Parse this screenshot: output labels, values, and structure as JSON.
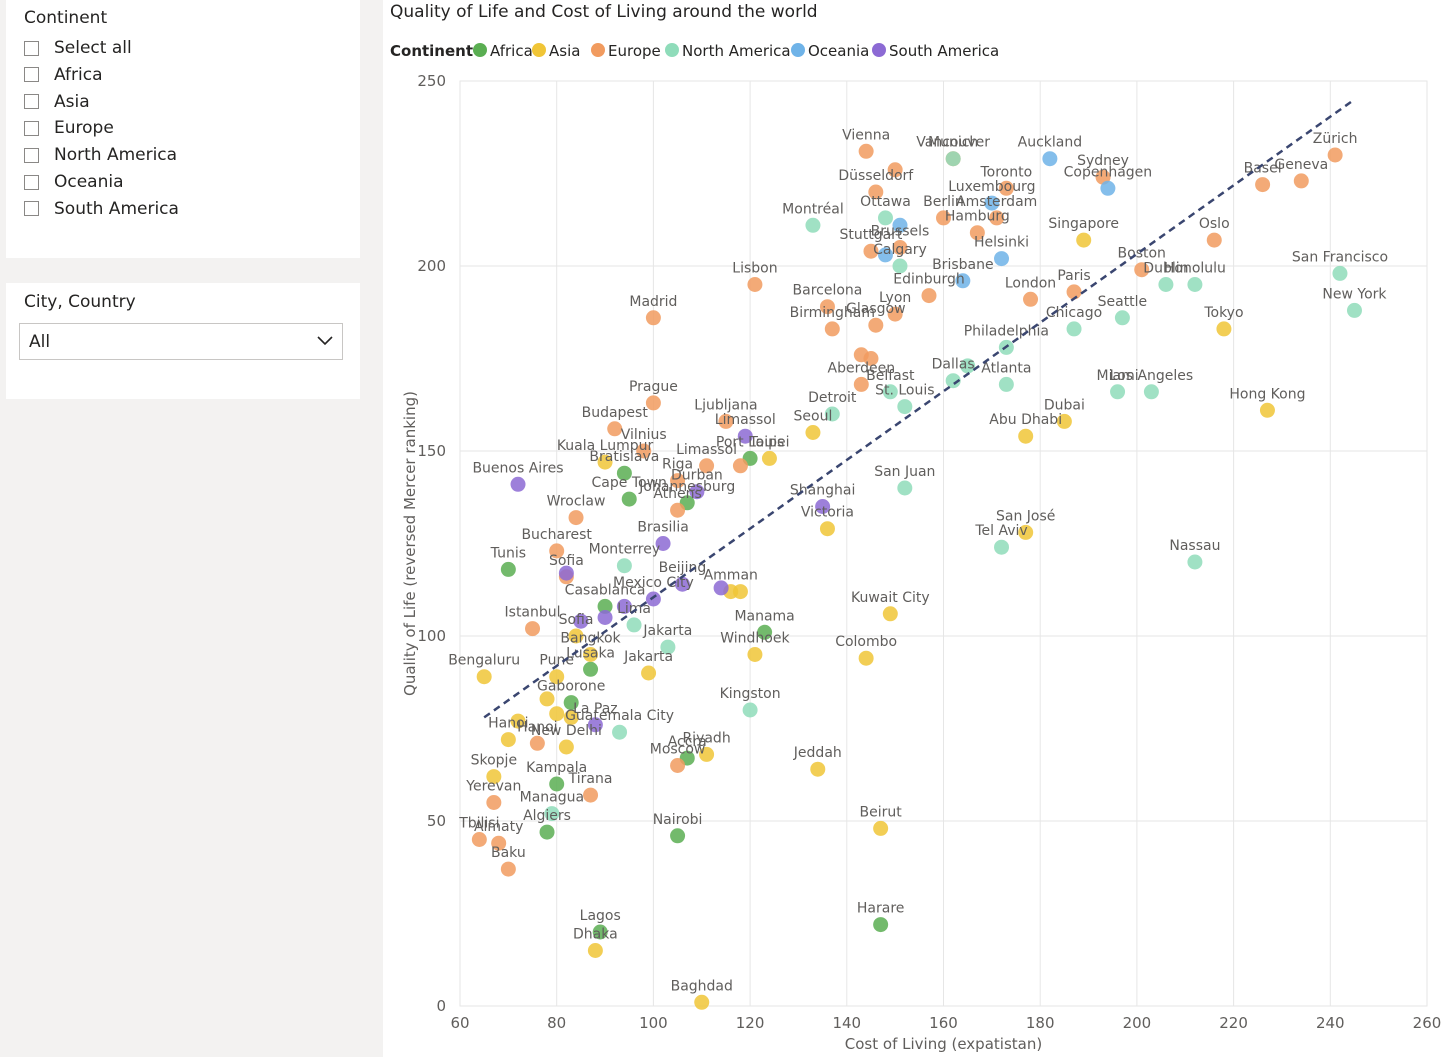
{
  "filters": {
    "continent": {
      "title": "Continent",
      "items": [
        {
          "label": "Select all",
          "checked": false
        },
        {
          "label": "Africa",
          "checked": false
        },
        {
          "label": "Asia",
          "checked": false
        },
        {
          "label": "Europe",
          "checked": false
        },
        {
          "label": "North America",
          "checked": false
        },
        {
          "label": "Oceania",
          "checked": false
        },
        {
          "label": "South America",
          "checked": false
        }
      ]
    },
    "city": {
      "title": "City, Country",
      "value": "All"
    }
  },
  "chart_data": {
    "type": "scatter",
    "title": "Quality of Life and Cost of Living around the world",
    "xlabel": "Cost of Living (expatistan)",
    "ylabel": "Quality of Life (reversed Mercer ranking)",
    "xlim": [
      60,
      260
    ],
    "ylim": [
      0,
      250
    ],
    "xticks": [
      60,
      80,
      100,
      120,
      140,
      160,
      180,
      200,
      220,
      240,
      260
    ],
    "yticks": [
      0,
      50,
      100,
      150,
      200,
      250
    ],
    "grid": true,
    "legend": {
      "title": "Continent",
      "position": "top-left"
    },
    "trendline": {
      "x": [
        65,
        245
      ],
      "y": [
        78,
        245
      ],
      "style": "dashed"
    },
    "series": [
      {
        "name": "Africa",
        "color": "#5aae52",
        "points": [
          {
            "x": 70,
            "y": 118,
            "label": "Tunis"
          },
          {
            "x": 90,
            "y": 108,
            "label": "Casablanca"
          },
          {
            "x": 123,
            "y": 101,
            "label": "Manama"
          },
          {
            "x": 94,
            "y": 144,
            "label": "Bratislava"
          },
          {
            "x": 95,
            "y": 137,
            "label": "Cape Town"
          },
          {
            "x": 107,
            "y": 136,
            "label": "Johannesburg"
          },
          {
            "x": 120,
            "y": 148,
            "label": "Port Louis"
          },
          {
            "x": 87,
            "y": 91,
            "label": "Lusaka"
          },
          {
            "x": 83,
            "y": 82,
            "label": "Gaborone"
          },
          {
            "x": 80,
            "y": 60,
            "label": "Kampala"
          },
          {
            "x": 78,
            "y": 47,
            "label": "Algiers"
          },
          {
            "x": 105,
            "y": 46,
            "label": "Nairobi"
          },
          {
            "x": 107,
            "y": 67,
            "label": "Accra"
          },
          {
            "x": 89,
            "y": 20,
            "label": "Lagos"
          },
          {
            "x": 147,
            "y": 22,
            "label": "Harare"
          }
        ]
      },
      {
        "name": "Asia",
        "color": "#f0c537",
        "points": [
          {
            "x": 65,
            "y": 89,
            "label": "Bengaluru"
          },
          {
            "x": 80,
            "y": 89,
            "label": "Pune"
          },
          {
            "x": 78,
            "y": 83,
            "label": ""
          },
          {
            "x": 72,
            "y": 77,
            "label": ""
          },
          {
            "x": 70,
            "y": 72,
            "label": "Hanoi"
          },
          {
            "x": 82,
            "y": 70,
            "label": "New Delhi"
          },
          {
            "x": 80,
            "y": 79,
            "label": ""
          },
          {
            "x": 83,
            "y": 78,
            "label": ""
          },
          {
            "x": 67,
            "y": 62,
            "label": "Skopje"
          },
          {
            "x": 84,
            "y": 100,
            "label": "Sofia"
          },
          {
            "x": 87,
            "y": 95,
            "label": "Bangkok"
          },
          {
            "x": 99,
            "y": 90,
            "label": "Jakarta"
          },
          {
            "x": 90,
            "y": 147,
            "label": "Kuala Lumpur"
          },
          {
            "x": 116,
            "y": 112,
            "label": "Amman"
          },
          {
            "x": 118,
            "y": 112,
            "label": ""
          },
          {
            "x": 121,
            "y": 95,
            "label": "Windhoek"
          },
          {
            "x": 111,
            "y": 68,
            "label": "Riyadh"
          },
          {
            "x": 134,
            "y": 64,
            "label": "Jeddah"
          },
          {
            "x": 133,
            "y": 155,
            "label": "Seoul"
          },
          {
            "x": 136,
            "y": 129,
            "label": "Victoria"
          },
          {
            "x": 124,
            "y": 148,
            "label": "Taipei"
          },
          {
            "x": 149,
            "y": 106,
            "label": "Kuwait City"
          },
          {
            "x": 144,
            "y": 94,
            "label": "Colombo"
          },
          {
            "x": 147,
            "y": 48,
            "label": "Beirut"
          },
          {
            "x": 88,
            "y": 15,
            "label": "Dhaka"
          },
          {
            "x": 110,
            "y": 1,
            "label": "Baghdad"
          },
          {
            "x": 177,
            "y": 154,
            "label": "Abu Dhabi"
          },
          {
            "x": 185,
            "y": 158,
            "label": "Dubai"
          },
          {
            "x": 177,
            "y": 128,
            "label": "San José"
          },
          {
            "x": 189,
            "y": 207,
            "label": "Singapore"
          },
          {
            "x": 218,
            "y": 183,
            "label": "Tokyo"
          },
          {
            "x": 227,
            "y": 161,
            "label": "Hong Kong"
          }
        ]
      },
      {
        "name": "Europe",
        "color": "#f19b5f",
        "points": [
          {
            "x": 144,
            "y": 231,
            "label": "Vienna"
          },
          {
            "x": 150,
            "y": 226,
            "label": ""
          },
          {
            "x": 162,
            "y": 229,
            "label": "Munich"
          },
          {
            "x": 146,
            "y": 220,
            "label": "Düsseldorf"
          },
          {
            "x": 173,
            "y": 221,
            "label": "Toronto"
          },
          {
            "x": 160,
            "y": 213,
            "label": "Berlin"
          },
          {
            "x": 171,
            "y": 213,
            "label": "Amsterdam"
          },
          {
            "x": 167,
            "y": 209,
            "label": "Hamburg"
          },
          {
            "x": 145,
            "y": 204,
            "label": "Stuttgart"
          },
          {
            "x": 151,
            "y": 205,
            "label": "Brussels"
          },
          {
            "x": 193,
            "y": 224,
            "label": "Sydney"
          },
          {
            "x": 241,
            "y": 230,
            "label": "Zürich"
          },
          {
            "x": 234,
            "y": 223,
            "label": "Geneva"
          },
          {
            "x": 226,
            "y": 222,
            "label": "Basel"
          },
          {
            "x": 216,
            "y": 207,
            "label": "Oslo"
          },
          {
            "x": 201,
            "y": 199,
            "label": "Boston"
          },
          {
            "x": 187,
            "y": 193,
            "label": "Paris"
          },
          {
            "x": 178,
            "y": 191,
            "label": "London"
          },
          {
            "x": 157,
            "y": 192,
            "label": "Edinburgh"
          },
          {
            "x": 150,
            "y": 187,
            "label": "Lyon"
          },
          {
            "x": 146,
            "y": 184,
            "label": "Glasgow"
          },
          {
            "x": 121,
            "y": 195,
            "label": "Lisbon"
          },
          {
            "x": 136,
            "y": 189,
            "label": "Barcelona"
          },
          {
            "x": 137,
            "y": 183,
            "label": "Birmingham"
          },
          {
            "x": 143,
            "y": 176,
            "label": ""
          },
          {
            "x": 145,
            "y": 175,
            "label": ""
          },
          {
            "x": 143,
            "y": 168,
            "label": "Aberdeen"
          },
          {
            "x": 100,
            "y": 186,
            "label": "Madrid"
          },
          {
            "x": 100,
            "y": 163,
            "label": "Prague"
          },
          {
            "x": 92,
            "y": 156,
            "label": "Budapest"
          },
          {
            "x": 115,
            "y": 158,
            "label": "Ljubljana"
          },
          {
            "x": 98,
            "y": 150,
            "label": "Vilnius"
          },
          {
            "x": 111,
            "y": 146,
            "label": "Limassol"
          },
          {
            "x": 118,
            "y": 146,
            "label": ""
          },
          {
            "x": 105,
            "y": 142,
            "label": "Riga"
          },
          {
            "x": 105,
            "y": 134,
            "label": "Athens"
          },
          {
            "x": 84,
            "y": 132,
            "label": "Wroclaw"
          },
          {
            "x": 80,
            "y": 123,
            "label": "Bucharest"
          },
          {
            "x": 82,
            "y": 116,
            "label": "Sofia"
          },
          {
            "x": 75,
            "y": 102,
            "label": "Istanbul"
          },
          {
            "x": 76,
            "y": 71,
            "label": "Hanoi"
          },
          {
            "x": 67,
            "y": 55,
            "label": "Yerevan"
          },
          {
            "x": 64,
            "y": 45,
            "label": "Tbilisi"
          },
          {
            "x": 68,
            "y": 44,
            "label": "Almaty"
          },
          {
            "x": 70,
            "y": 37,
            "label": "Baku"
          },
          {
            "x": 87,
            "y": 57,
            "label": "Tirana"
          },
          {
            "x": 105,
            "y": 65,
            "label": "Moscow"
          }
        ]
      },
      {
        "name": "North America",
        "color": "#8fdcba",
        "points": [
          {
            "x": 133,
            "y": 211,
            "label": "Montréal"
          },
          {
            "x": 148,
            "y": 213,
            "label": "Ottawa"
          },
          {
            "x": 162,
            "y": 229,
            "label": "Vancouver"
          },
          {
            "x": 151,
            "y": 200,
            "label": "Calgary"
          },
          {
            "x": 187,
            "y": 183,
            "label": "Chicago"
          },
          {
            "x": 197,
            "y": 186,
            "label": "Seattle"
          },
          {
            "x": 206,
            "y": 195,
            "label": "Dublin"
          },
          {
            "x": 212,
            "y": 195,
            "label": "Honolulu"
          },
          {
            "x": 242,
            "y": 198,
            "label": "San Francisco"
          },
          {
            "x": 245,
            "y": 188,
            "label": "New York"
          },
          {
            "x": 196,
            "y": 166,
            "label": "Miami"
          },
          {
            "x": 203,
            "y": 166,
            "label": "Los Angeles"
          },
          {
            "x": 173,
            "y": 178,
            "label": "Philadelphia"
          },
          {
            "x": 165,
            "y": 173,
            "label": ""
          },
          {
            "x": 162,
            "y": 169,
            "label": "Dallas"
          },
          {
            "x": 173,
            "y": 168,
            "label": "Atlanta"
          },
          {
            "x": 149,
            "y": 166,
            "label": "Belfast"
          },
          {
            "x": 152,
            "y": 162,
            "label": "St. Louis"
          },
          {
            "x": 137,
            "y": 160,
            "label": "Detroit"
          },
          {
            "x": 152,
            "y": 140,
            "label": "San Juan"
          },
          {
            "x": 172,
            "y": 124,
            "label": "Tel Aviv"
          },
          {
            "x": 212,
            "y": 120,
            "label": "Nassau"
          },
          {
            "x": 94,
            "y": 119,
            "label": "Monterrey"
          },
          {
            "x": 96,
            "y": 103,
            "label": "Lima"
          },
          {
            "x": 103,
            "y": 97,
            "label": "Jakarta"
          },
          {
            "x": 120,
            "y": 80,
            "label": "Kingston"
          },
          {
            "x": 93,
            "y": 74,
            "label": "Guatemala City"
          },
          {
            "x": 79,
            "y": 52,
            "label": "Managua"
          }
        ]
      },
      {
        "name": "Oceania",
        "color": "#6fb3e8",
        "points": [
          {
            "x": 182,
            "y": 229,
            "label": "Auckland"
          },
          {
            "x": 194,
            "y": 221,
            "label": "Copenhagen"
          },
          {
            "x": 170,
            "y": 217,
            "label": "Luxembourg"
          },
          {
            "x": 151,
            "y": 211,
            "label": ""
          },
          {
            "x": 148,
            "y": 203,
            "label": ""
          },
          {
            "x": 172,
            "y": 202,
            "label": "Helsinki"
          },
          {
            "x": 164,
            "y": 196,
            "label": "Brisbane"
          }
        ]
      },
      {
        "name": "South America",
        "color": "#8c6ad4",
        "points": [
          {
            "x": 72,
            "y": 141,
            "label": "Buenos Aires"
          },
          {
            "x": 119,
            "y": 154,
            "label": "Limassol"
          },
          {
            "x": 109,
            "y": 139,
            "label": "Durban"
          },
          {
            "x": 135,
            "y": 135,
            "label": "Shanghai"
          },
          {
            "x": 102,
            "y": 125,
            "label": "Brasilia"
          },
          {
            "x": 82,
            "y": 117,
            "label": ""
          },
          {
            "x": 106,
            "y": 114,
            "label": "Beijing"
          },
          {
            "x": 114,
            "y": 113,
            "label": ""
          },
          {
            "x": 100,
            "y": 110,
            "label": "Mexico City"
          },
          {
            "x": 94,
            "y": 108,
            "label": ""
          },
          {
            "x": 90,
            "y": 105,
            "label": ""
          },
          {
            "x": 85,
            "y": 104,
            "label": ""
          },
          {
            "x": 88,
            "y": 76,
            "label": "La Paz"
          }
        ]
      }
    ]
  }
}
